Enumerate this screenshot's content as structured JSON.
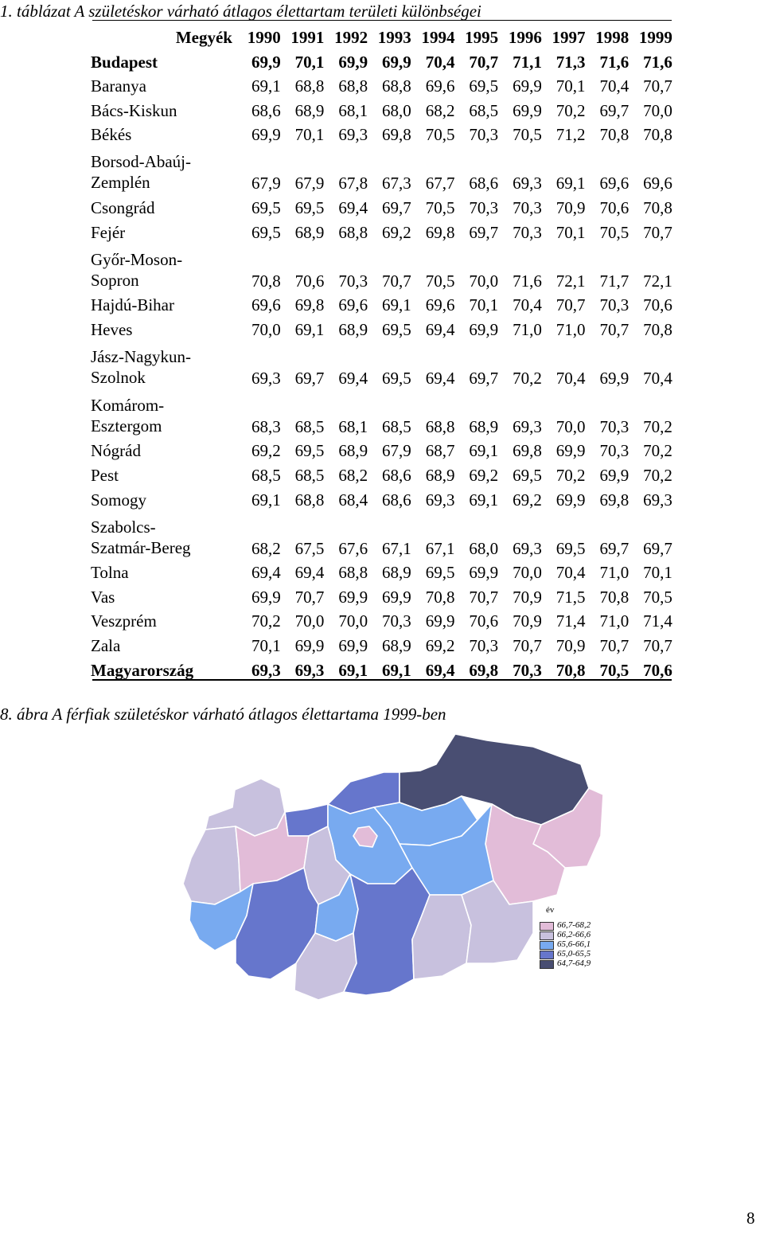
{
  "table_caption": "1. táblázat A születéskor várható átlagos élettartam területi különbségei",
  "header": {
    "region_label": "Megyék",
    "years": [
      "1990",
      "1991",
      "1992",
      "1993",
      "1994",
      "1995",
      "1996",
      "1997",
      "1998",
      "1999"
    ]
  },
  "rows": [
    {
      "name": "Budapest",
      "values": [
        "69,9",
        "70,1",
        "69,9",
        "69,9",
        "70,4",
        "70,7",
        "71,1",
        "71,3",
        "71,6",
        "71,6"
      ]
    },
    {
      "name": "Baranya",
      "values": [
        "69,1",
        "68,8",
        "68,8",
        "68,8",
        "69,6",
        "69,5",
        "69,9",
        "70,1",
        "70,4",
        "70,7"
      ]
    },
    {
      "name": "Bács-Kiskun",
      "values": [
        "68,6",
        "68,9",
        "68,1",
        "68,0",
        "68,2",
        "68,5",
        "69,9",
        "70,2",
        "69,7",
        "70,0"
      ]
    },
    {
      "name": "Békés",
      "values": [
        "69,9",
        "70,1",
        "69,3",
        "69,8",
        "70,5",
        "70,3",
        "70,5",
        "71,2",
        "70,8",
        "70,8"
      ]
    },
    {
      "name_line1": "Borsod-Abaúj-",
      "name_line2": "Zemplén",
      "values": [
        "67,9",
        "67,9",
        "67,8",
        "67,3",
        "67,7",
        "68,6",
        "69,3",
        "69,1",
        "69,6",
        "69,6"
      ]
    },
    {
      "name": "Csongrád",
      "values": [
        "69,5",
        "69,5",
        "69,4",
        "69,7",
        "70,5",
        "70,3",
        "70,3",
        "70,9",
        "70,6",
        "70,8"
      ]
    },
    {
      "name": "Fejér",
      "values": [
        "69,5",
        "68,9",
        "68,8",
        "69,2",
        "69,8",
        "69,7",
        "70,3",
        "70,1",
        "70,5",
        "70,7"
      ]
    },
    {
      "name_line1": "Győr-Moson-",
      "name_line2": "Sopron",
      "values": [
        "70,8",
        "70,6",
        "70,3",
        "70,7",
        "70,5",
        "70,0",
        "71,6",
        "72,1",
        "71,7",
        "72,1"
      ]
    },
    {
      "name": "Hajdú-Bihar",
      "values": [
        "69,6",
        "69,8",
        "69,6",
        "69,1",
        "69,6",
        "70,1",
        "70,4",
        "70,7",
        "70,3",
        "70,6"
      ]
    },
    {
      "name": "Heves",
      "values": [
        "70,0",
        "69,1",
        "68,9",
        "69,5",
        "69,4",
        "69,9",
        "71,0",
        "71,0",
        "70,7",
        "70,8"
      ]
    },
    {
      "name_line1": "Jász-Nagykun-",
      "name_line2": "Szolnok",
      "values": [
        "69,3",
        "69,7",
        "69,4",
        "69,5",
        "69,4",
        "69,7",
        "70,2",
        "70,4",
        "69,9",
        "70,4"
      ]
    },
    {
      "name_line1": "Komárom-",
      "name_line2": "Esztergom",
      "values": [
        "68,3",
        "68,5",
        "68,1",
        "68,5",
        "68,8",
        "68,9",
        "69,3",
        "70,0",
        "70,3",
        "70,2"
      ]
    },
    {
      "name": "Nógrád",
      "values": [
        "69,2",
        "69,5",
        "68,9",
        "67,9",
        "68,7",
        "69,1",
        "69,8",
        "69,9",
        "70,3",
        "70,2"
      ]
    },
    {
      "name": "Pest",
      "values": [
        "68,5",
        "68,5",
        "68,2",
        "68,6",
        "68,9",
        "69,2",
        "69,5",
        "70,2",
        "69,9",
        "70,2"
      ]
    },
    {
      "name": "Somogy",
      "values": [
        "69,1",
        "68,8",
        "68,4",
        "68,6",
        "69,3",
        "69,1",
        "69,2",
        "69,9",
        "69,8",
        "69,3"
      ]
    },
    {
      "name_line1": "Szabolcs-",
      "name_line2": "Szatmár-Bereg",
      "values": [
        "68,2",
        "67,5",
        "67,6",
        "67,1",
        "67,1",
        "68,0",
        "69,3",
        "69,5",
        "69,7",
        "69,7"
      ]
    },
    {
      "name": "Tolna",
      "values": [
        "69,4",
        "69,4",
        "68,8",
        "68,9",
        "69,5",
        "69,9",
        "70,0",
        "70,4",
        "71,0",
        "70,1"
      ]
    },
    {
      "name": "Vas",
      "values": [
        "69,9",
        "70,7",
        "69,9",
        "69,9",
        "70,8",
        "70,7",
        "70,9",
        "71,5",
        "70,8",
        "70,5"
      ]
    },
    {
      "name": "Veszprém",
      "values": [
        "70,2",
        "70,0",
        "70,0",
        "70,3",
        "69,9",
        "70,6",
        "70,9",
        "71,4",
        "71,0",
        "71,4"
      ]
    },
    {
      "name": "Zala",
      "values": [
        "70,1",
        "69,9",
        "69,9",
        "68,9",
        "69,2",
        "70,3",
        "70,7",
        "70,9",
        "70,7",
        "70,7"
      ]
    },
    {
      "name": "Magyarország",
      "values": [
        "69,3",
        "69,3",
        "69,1",
        "69,1",
        "69,4",
        "69,8",
        "70,3",
        "70,8",
        "70,5",
        "70,6"
      ]
    }
  ],
  "map_caption": "8. ábra A férfiak születéskor várható átlagos élettartama 1999-ben",
  "legend": {
    "title": "év",
    "classes": [
      {
        "label": "66,7-68,2",
        "color": "#e2bcd8"
      },
      {
        "label": "66,2-66,6",
        "color": "#c8c1de"
      },
      {
        "label": "65,6-66,1",
        "color": "#78aaf0"
      },
      {
        "label": "65,0-65,5",
        "color": "#6676cc"
      },
      {
        "label": "64,7-64,9",
        "color": "#494e72"
      }
    ]
  },
  "page_number": "8"
}
